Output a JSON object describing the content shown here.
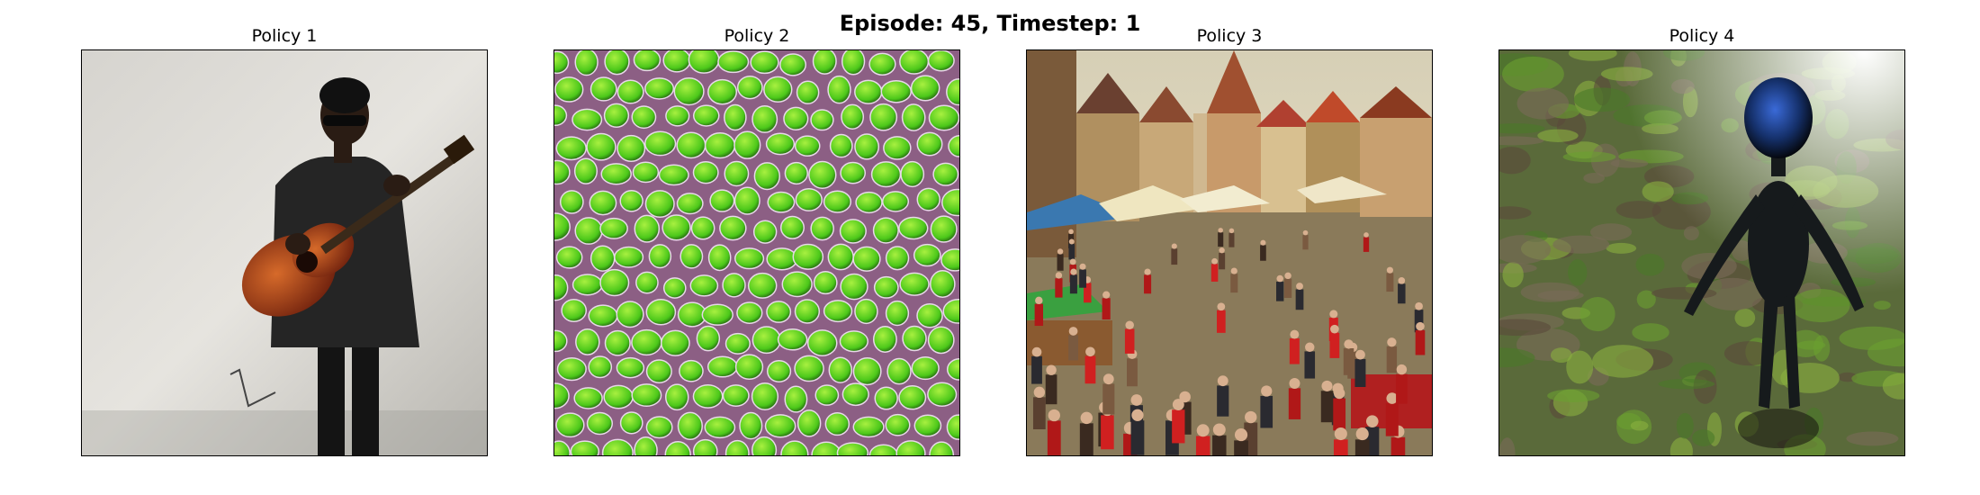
{
  "figure": {
    "title": "Episode: 45, Timestep: 1"
  },
  "panels": [
    {
      "title": "Policy 1"
    },
    {
      "title": "Policy 2"
    },
    {
      "title": "Policy 3"
    },
    {
      "title": "Policy 4"
    }
  ]
}
